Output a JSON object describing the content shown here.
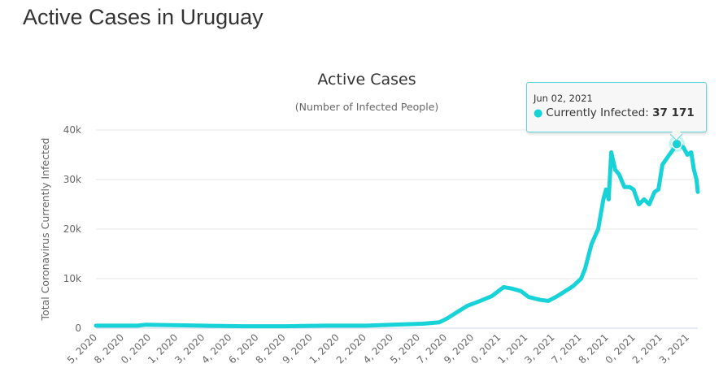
{
  "page": {
    "title": "Active Cases in Uruguay"
  },
  "tooltip": {
    "date": "Jun 02, 2021",
    "label": "Currently Infected:",
    "value": "37 171"
  },
  "chart_data": {
    "type": "line",
    "title": "Active Cases",
    "subtitle": "(Number of Infected People)",
    "ylabel": "Total Coronavirus Currently Infected",
    "xlabel": "",
    "ylim": [
      0,
      40000
    ],
    "xlim": [
      0,
      459
    ],
    "y_ticks": [
      {
        "v": 0,
        "label": "0"
      },
      {
        "v": 10000,
        "label": "10k"
      },
      {
        "v": 20000,
        "label": "20k"
      },
      {
        "v": 30000,
        "label": "30k"
      },
      {
        "v": 40000,
        "label": "40k"
      }
    ],
    "x_tick_labels": [
      "5, 2020",
      "8, 2020",
      "0, 2020",
      "1, 2020",
      "3, 2020",
      "4, 2020",
      "6, 2020",
      "8, 2020",
      "9, 2020",
      "1, 2020",
      "2, 2020",
      "4, 2020",
      "5, 2020",
      "7, 2020",
      "9, 2020",
      "0, 2021",
      "1, 2021",
      "3, 2021",
      "7, 2021",
      "8, 2021",
      "0, 2021",
      "2, 2021",
      "3, 2021"
    ],
    "grid": true,
    "color": "#17d3d7",
    "series": [
      {
        "name": "Currently Infected",
        "x": [
          0,
          32,
          38,
          82,
          113,
          144,
          175,
          206,
          237,
          249,
          262,
          268,
          274,
          283,
          293,
          302,
          311,
          317,
          324,
          330,
          339,
          345,
          352,
          358,
          364,
          370,
          373,
          378,
          383,
          387,
          389,
          391,
          393,
          396,
          399,
          403,
          407,
          410,
          414,
          418,
          422,
          426,
          429,
          432,
          436,
          440,
          443,
          448,
          451,
          454,
          456,
          458,
          459
        ],
        "values": [
          500,
          500,
          700,
          500,
          400,
          400,
          500,
          500,
          800,
          900,
          1200,
          2000,
          3000,
          4500,
          5500,
          6500,
          8300,
          8000,
          7500,
          6300,
          5700,
          5500,
          6500,
          7500,
          8500,
          10000,
          12000,
          17000,
          20000,
          26000,
          28000,
          26000,
          35500,
          32000,
          31000,
          28500,
          28500,
          28000,
          25000,
          26000,
          25000,
          27500,
          28000,
          33000,
          34500,
          36000,
          37171,
          36500,
          35000,
          35500,
          32000,
          30000,
          27500
        ]
      }
    ],
    "highlight": {
      "x": 443,
      "value": 37171
    }
  }
}
